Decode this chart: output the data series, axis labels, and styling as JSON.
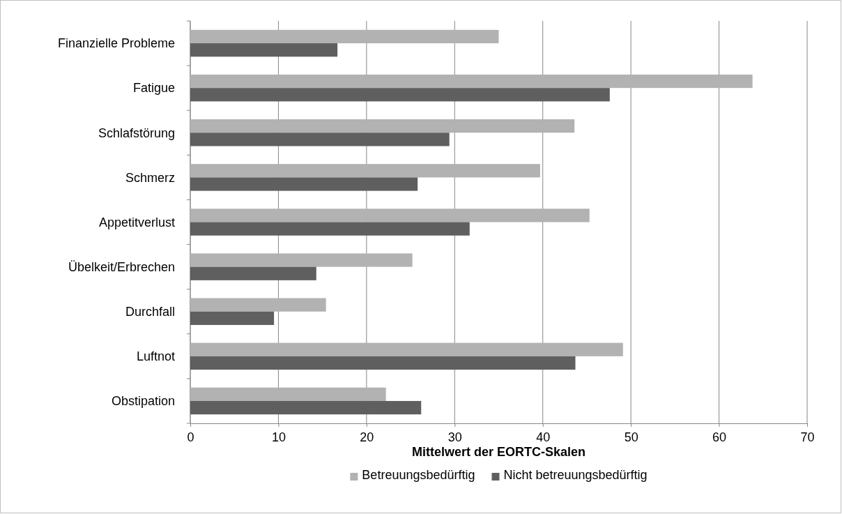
{
  "chart_data": {
    "type": "bar",
    "orientation": "horizontal",
    "xlabel": "Mittelwert der EORTC-Skalen",
    "categories": [
      "Finanzielle Probleme",
      "Fatigue",
      "Schlafstörung",
      "Schmerz",
      "Appetitverlust",
      "Übelkeit/Erbrechen",
      "Durchfall",
      "Luftnot",
      "Obstipation"
    ],
    "series": [
      {
        "name": "Betreuungsbedürftig",
        "color": "#b2b2b2",
        "values": [
          35,
          63.8,
          43.6,
          39.7,
          45.3,
          25.2,
          15.4,
          49.1,
          22.2
        ]
      },
      {
        "name": "Nicht betreuungsbedürftig",
        "color": "#5f5f5f",
        "values": [
          16.7,
          47.6,
          29.4,
          25.8,
          31.7,
          14.3,
          9.5,
          43.7,
          26.2
        ]
      }
    ],
    "xlim": [
      0,
      70
    ],
    "xticks": [
      0,
      10,
      20,
      30,
      40,
      50,
      60,
      70
    ],
    "grid": "x",
    "legend": "bottom"
  }
}
